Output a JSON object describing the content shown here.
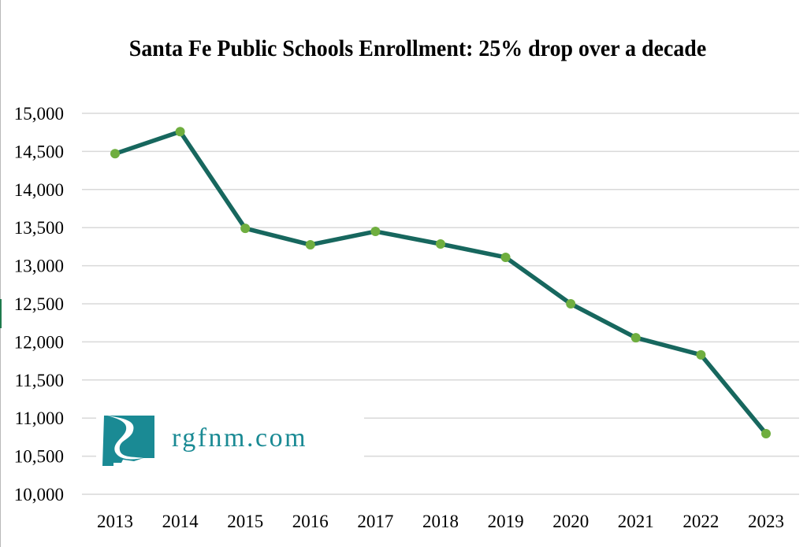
{
  "chart_data": {
    "type": "line",
    "title": "Santa Fe Public Schools Enrollment: 25% drop over a decade",
    "xlabel": "",
    "ylabel": "",
    "categories": [
      "2013",
      "2014",
      "2015",
      "2016",
      "2017",
      "2018",
      "2019",
      "2020",
      "2021",
      "2022",
      "2023"
    ],
    "series": [
      {
        "name": "Enrollment",
        "values": [
          14470,
          14760,
          13490,
          13275,
          13450,
          13285,
          13110,
          12500,
          12055,
          11830,
          10795
        ]
      }
    ],
    "ylim": [
      10000,
      15000
    ],
    "yticks": [
      10000,
      10500,
      11000,
      11500,
      12000,
      12500,
      13000,
      13500,
      14000,
      14500,
      15000
    ],
    "ytick_labels": [
      "10,000",
      "10,500",
      "11,000",
      "11,500",
      "12,000",
      "12,500",
      "13,000",
      "13,500",
      "14,000",
      "14,500",
      "15,000"
    ],
    "grid": true,
    "legend": "none",
    "colors": {
      "line": "#17675e",
      "marker": "#6fae3f",
      "grid": "#d9d9d9"
    }
  },
  "watermark": {
    "text": "rgfnm.com",
    "color": "#1a8a94"
  }
}
